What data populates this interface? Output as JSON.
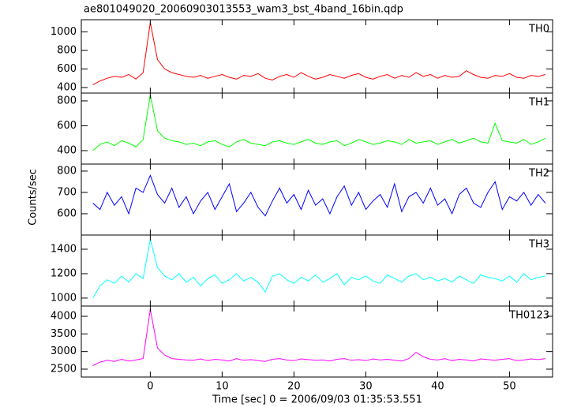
{
  "chart_data": {
    "type": "line",
    "title": "ae801049020_20060903013553_wam3_bst_4band_16bin.qdp",
    "x_label": "Time [sec] 0 = 2006/09/03 01:35:53.551",
    "y_label": "Counts/sec",
    "xlim": [
      -9.6,
      56
    ],
    "xticks": [
      0,
      10,
      20,
      30,
      40,
      50
    ],
    "x": [
      -8,
      -7,
      -6,
      -5,
      -4,
      -3,
      -2,
      -1,
      0,
      1,
      2,
      3,
      4,
      5,
      6,
      7,
      8,
      9,
      10,
      11,
      12,
      13,
      14,
      15,
      16,
      17,
      18,
      19,
      20,
      21,
      22,
      23,
      24,
      25,
      26,
      27,
      28,
      29,
      30,
      31,
      32,
      33,
      34,
      35,
      36,
      37,
      38,
      39,
      40,
      41,
      42,
      43,
      44,
      45,
      46,
      47,
      48,
      49,
      50,
      51,
      52,
      53,
      54,
      55
    ],
    "series": [
      {
        "name": "TH0",
        "color": "#ff0000",
        "ylim": [
          340,
          1130
        ],
        "yticks": [
          400,
          600,
          800,
          1000
        ],
        "values": [
          430,
          470,
          500,
          520,
          510,
          540,
          490,
          560,
          1100,
          700,
          600,
          560,
          540,
          520,
          510,
          530,
          500,
          520,
          540,
          510,
          490,
          530,
          520,
          550,
          500,
          480,
          520,
          540,
          510,
          560,
          520,
          490,
          510,
          540,
          520,
          500,
          530,
          550,
          510,
          490,
          520,
          540,
          500,
          530,
          510,
          560,
          520,
          540,
          500,
          530,
          510,
          520,
          580,
          540,
          510,
          500,
          530,
          520,
          550,
          510,
          500,
          530,
          520,
          540
        ]
      },
      {
        "name": "TH1",
        "color": "#00ff00",
        "ylim": [
          292,
          863
        ],
        "yticks": [
          400,
          600,
          800
        ],
        "values": [
          400,
          450,
          470,
          440,
          480,
          460,
          430,
          490,
          850,
          560,
          500,
          480,
          470,
          450,
          460,
          440,
          470,
          480,
          450,
          430,
          470,
          490,
          460,
          450,
          440,
          470,
          480,
          460,
          450,
          470,
          490,
          460,
          450,
          470,
          480,
          440,
          460,
          490,
          470,
          450,
          460,
          480,
          470,
          450,
          490,
          460,
          470,
          480,
          450,
          470,
          490,
          460,
          480,
          500,
          470,
          460,
          620,
          480,
          470,
          460,
          490,
          450,
          470,
          500
        ]
      },
      {
        "name": "TH2",
        "color": "#0000ff",
        "ylim": [
          500,
          833
        ],
        "yticks": [
          600,
          700,
          800
        ],
        "values": [
          650,
          620,
          700,
          640,
          680,
          600,
          720,
          700,
          780,
          690,
          650,
          720,
          630,
          680,
          600,
          660,
          700,
          620,
          680,
          740,
          610,
          650,
          700,
          630,
          590,
          660,
          720,
          650,
          690,
          620,
          710,
          640,
          670,
          600,
          680,
          730,
          640,
          700,
          620,
          660,
          690,
          630,
          740,
          610,
          680,
          700,
          650,
          720,
          640,
          670,
          600,
          690,
          720,
          650,
          630,
          700,
          750,
          620,
          680,
          660,
          700,
          640,
          690,
          650
        ]
      },
      {
        "name": "TH3",
        "color": "#00ffff",
        "ylim": [
          935,
          1516
        ],
        "yticks": [
          1000,
          1200,
          1400
        ],
        "values": [
          1000,
          1100,
          1150,
          1120,
          1180,
          1130,
          1200,
          1160,
          1480,
          1250,
          1180,
          1150,
          1200,
          1130,
          1170,
          1100,
          1160,
          1190,
          1120,
          1150,
          1200,
          1140,
          1170,
          1130,
          1050,
          1180,
          1200,
          1150,
          1120,
          1170,
          1140,
          1190,
          1130,
          1160,
          1200,
          1110,
          1170,
          1150,
          1180,
          1140,
          1120,
          1190,
          1160,
          1130,
          1180,
          1200,
          1150,
          1170,
          1140,
          1160,
          1130,
          1180,
          1150,
          1120,
          1190,
          1170,
          1160,
          1140,
          1180,
          1130,
          1200,
          1150,
          1170,
          1180
        ]
      },
      {
        "name": "TH0123",
        "color": "#ff00ff",
        "ylim": [
          2276,
          4291
        ],
        "yticks": [
          2500,
          3000,
          3500,
          4000
        ],
        "values": [
          2600,
          2700,
          2750,
          2720,
          2780,
          2730,
          2760,
          2800,
          4200,
          3100,
          2900,
          2800,
          2780,
          2760,
          2750,
          2790,
          2740,
          2780,
          2760,
          2730,
          2800,
          2750,
          2770,
          2740,
          2720,
          2780,
          2800,
          2760,
          2740,
          2790,
          2770,
          2750,
          2760,
          2730,
          2780,
          2800,
          2750,
          2770,
          2740,
          2790,
          2760,
          2780,
          2750,
          2730,
          2800,
          2980,
          2850,
          2780,
          2760,
          2800,
          2740,
          2780,
          2760,
          2730,
          2790,
          2770,
          2750,
          2780,
          2800,
          2740,
          2760,
          2790,
          2770,
          2800
        ]
      }
    ]
  }
}
